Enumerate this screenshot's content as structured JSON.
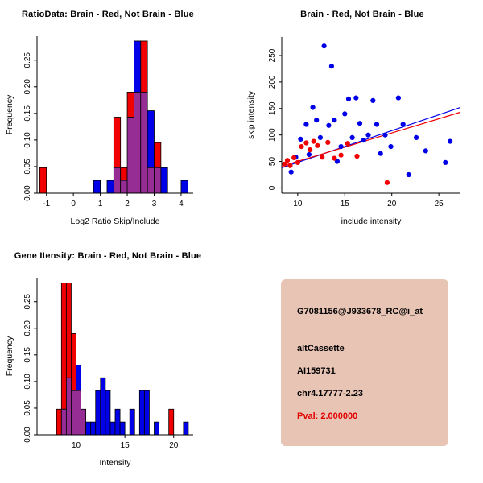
{
  "colors": {
    "red": "#F00000",
    "blue": "#0000E8",
    "overlap": "#952D95",
    "axis": "#000000",
    "title_text": "#000000",
    "background": "#FFFFFF"
  },
  "chart_data": [
    {
      "type": "bar",
      "title": "RatioData: Brain - Red, Not Brain - Blue",
      "xlabel": "Log2 Ratio Skip/Include",
      "ylabel": "Frequency",
      "legend": {
        "red": "Brain",
        "blue": "Not Brain"
      },
      "xlim": [
        -1.35,
        4.45
      ],
      "ylim": [
        0,
        0.295
      ],
      "xticks": [
        -1,
        0,
        1,
        2,
        3,
        4
      ],
      "xtick_labels": [
        "-1",
        "0",
        "1",
        "2",
        "3",
        "4"
      ],
      "yticks": [
        0,
        0.05,
        0.1,
        0.15,
        0.2,
        0.25
      ],
      "ytick_labels": [
        "0.00",
        "0.05",
        "0.10",
        "0.15",
        "0.20",
        "0.25"
      ],
      "bin_width": 0.25,
      "bins": [
        {
          "x": -1.25,
          "red": 0.048,
          "blue": 0
        },
        {
          "x": 0.75,
          "red": 0,
          "blue": 0.024
        },
        {
          "x": 1.25,
          "red": 0,
          "blue": 0.024
        },
        {
          "x": 1.5,
          "red": 0.143,
          "blue": 0.048
        },
        {
          "x": 1.75,
          "red": 0.048,
          "blue": 0.024
        },
        {
          "x": 2,
          "red": 0.19,
          "blue": 0.143
        },
        {
          "x": 2.25,
          "red": 0.19,
          "blue": 0.286
        },
        {
          "x": 2.5,
          "red": 0.286,
          "blue": 0.19
        },
        {
          "x": 2.75,
          "red": 0.048,
          "blue": 0.155
        },
        {
          "x": 3,
          "red": 0.095,
          "blue": 0.048
        },
        {
          "x": 3.25,
          "red": 0,
          "blue": 0.048
        },
        {
          "x": 4,
          "red": 0,
          "blue": 0.024
        }
      ]
    },
    {
      "type": "scatter",
      "title": "Brain - Red, Not Brain - Blue",
      "xlabel": "include intensity",
      "ylabel": "skip intensity",
      "legend": {
        "red": "Brain",
        "blue": "Not Brain"
      },
      "xlim": [
        8.3,
        27.3
      ],
      "ylim": [
        -10,
        285
      ],
      "xticks": [
        10,
        15,
        20,
        25
      ],
      "xtick_labels": [
        "10",
        "15",
        "20",
        "25"
      ],
      "yticks": [
        0,
        50,
        100,
        150,
        200,
        250
      ],
      "ytick_labels": [
        "0",
        "50",
        "100",
        "150",
        "200",
        "250"
      ],
      "red_points": [
        [
          8.6,
          45
        ],
        [
          8.9,
          52
        ],
        [
          9.2,
          42
        ],
        [
          9.6,
          57
        ],
        [
          10,
          48
        ],
        [
          10.4,
          78
        ],
        [
          10.9,
          85
        ],
        [
          11.3,
          72
        ],
        [
          11.7,
          88
        ],
        [
          12.1,
          80
        ],
        [
          12.6,
          58
        ],
        [
          13.2,
          86
        ],
        [
          13.9,
          56
        ],
        [
          14.6,
          62
        ],
        [
          15.3,
          84
        ],
        [
          16.3,
          60
        ],
        [
          19.5,
          10
        ]
      ],
      "blue_points": [
        [
          9.3,
          30
        ],
        [
          9.8,
          58
        ],
        [
          10.3,
          92
        ],
        [
          10.9,
          120
        ],
        [
          11.2,
          63
        ],
        [
          11.6,
          152
        ],
        [
          12,
          128
        ],
        [
          12.4,
          95
        ],
        [
          12.8,
          268
        ],
        [
          13.3,
          118
        ],
        [
          13.6,
          230
        ],
        [
          13.9,
          128
        ],
        [
          14.2,
          50
        ],
        [
          14.6,
          78
        ],
        [
          15,
          140
        ],
        [
          15.4,
          168
        ],
        [
          15.8,
          95
        ],
        [
          16.2,
          170
        ],
        [
          16.6,
          122
        ],
        [
          17,
          90
        ],
        [
          17.5,
          100
        ],
        [
          18,
          165
        ],
        [
          18.4,
          120
        ],
        [
          18.8,
          65
        ],
        [
          19.3,
          100
        ],
        [
          19.9,
          78
        ],
        [
          20.7,
          170
        ],
        [
          21.2,
          120
        ],
        [
          21.8,
          25
        ],
        [
          22.6,
          95
        ],
        [
          23.6,
          70
        ],
        [
          25.7,
          48
        ],
        [
          26.2,
          88
        ]
      ],
      "lines": [
        {
          "name": "fit-not-brain",
          "color_key": "blue",
          "x1": 8.3,
          "y1": 38,
          "x2": 27.3,
          "y2": 152
        },
        {
          "name": "fit-brain",
          "color_key": "red",
          "x1": 8.3,
          "y1": 41,
          "x2": 27.3,
          "y2": 143
        }
      ]
    },
    {
      "type": "bar",
      "title": "Gene Itensity: Brain - Red, Not Brain - Blue",
      "xlabel": "Intensity",
      "ylabel": "Frequency",
      "legend": {
        "red": "Brain",
        "blue": "Not Brain"
      },
      "xlim": [
        6,
        22
      ],
      "ylim": [
        0,
        0.295
      ],
      "xticks": [
        10,
        15,
        20
      ],
      "xtick_labels": [
        "10",
        "15",
        "20"
      ],
      "yticks": [
        0,
        0.05,
        0.1,
        0.15,
        0.2,
        0.25
      ],
      "ytick_labels": [
        "0.00",
        "0.05",
        "0.10",
        "0.15",
        "0.20",
        "0.25"
      ],
      "bin_width": 0.5,
      "bins": [
        {
          "x": 8,
          "red": 0.048,
          "blue": 0
        },
        {
          "x": 8.5,
          "red": 0.285,
          "blue": 0.048
        },
        {
          "x": 9,
          "red": 0.285,
          "blue": 0.107
        },
        {
          "x": 9.5,
          "red": 0.19,
          "blue": 0.083
        },
        {
          "x": 10,
          "red": 0.083,
          "blue": 0.131
        },
        {
          "x": 10.5,
          "red": 0.048,
          "blue": 0.048
        },
        {
          "x": 11,
          "red": 0,
          "blue": 0.024
        },
        {
          "x": 11.5,
          "red": 0,
          "blue": 0.024
        },
        {
          "x": 12,
          "red": 0,
          "blue": 0.083
        },
        {
          "x": 12.5,
          "red": 0,
          "blue": 0.107
        },
        {
          "x": 13,
          "red": 0,
          "blue": 0.083
        },
        {
          "x": 13.5,
          "red": 0,
          "blue": 0.024
        },
        {
          "x": 14,
          "red": 0,
          "blue": 0.048
        },
        {
          "x": 14.5,
          "red": 0,
          "blue": 0.024
        },
        {
          "x": 15.5,
          "red": 0,
          "blue": 0.048
        },
        {
          "x": 16.5,
          "red": 0,
          "blue": 0.083
        },
        {
          "x": 17,
          "red": 0,
          "blue": 0.083
        },
        {
          "x": 18,
          "red": 0,
          "blue": 0.024
        },
        {
          "x": 19.5,
          "red": 0.048,
          "blue": 0
        },
        {
          "x": 21,
          "red": 0,
          "blue": 0.024
        }
      ]
    }
  ],
  "info_panel": {
    "background": "#E8C4B5",
    "lines": [
      {
        "text": "G7081156@J933678_RC@i_at",
        "color": "#000000"
      },
      {
        "text": "altCassette",
        "color": "#000000"
      },
      {
        "text": "AI159731",
        "color": "#000000"
      },
      {
        "text": "chr4.17777-2.23",
        "color": "#000000"
      },
      {
        "text": "Pval: 2.000000",
        "color": "#E10000"
      }
    ]
  }
}
